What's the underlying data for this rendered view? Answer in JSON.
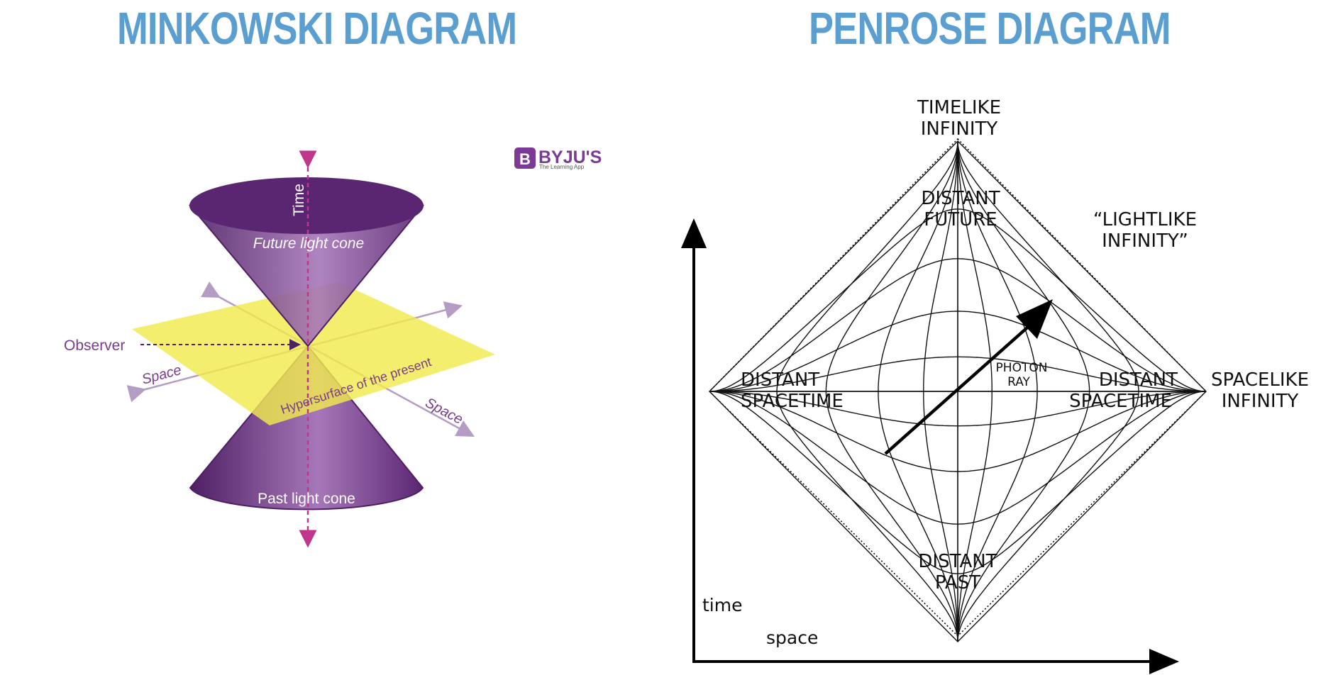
{
  "colors": {
    "title": "#5b9fd0",
    "cone_dark": "#4e1f63",
    "cone_mid": "#6e3585",
    "cone_light": "#a677b8",
    "plane": "#f0ea4e",
    "axis_time": "#c0368c",
    "axis_space": "#b49cc4",
    "observer_text": "#7a3b8f",
    "logo": "#7b3a96"
  },
  "left": {
    "title": "MINKOWSKI DIAGRAM",
    "time_label": "Time",
    "future_cone_label": "Future light cone",
    "past_cone_label": "Past light cone",
    "observer_label": "Observer",
    "space_label_left": "Space",
    "space_label_right": "Space",
    "plane_label": "Hypersurface of the present",
    "logo": {
      "letter": "B",
      "name": "BYJU'S",
      "tagline": "The Learning App"
    }
  },
  "right": {
    "title": "PENROSE DIAGRAM",
    "timelike_1": "TIMELIKE",
    "timelike_2": "INFINITY",
    "future_1": "DISTANT",
    "future_2": "FUTURE",
    "lightlike_1": "“LIGHTLIKE",
    "lightlike_2": "INFINITY”",
    "spacetime_left_1": "DISTANT",
    "spacetime_left_2": "SPACETIME",
    "spacetime_right_1": "DISTANT",
    "spacetime_right_2": "SPACETIME",
    "spacelike_1": "SPACELIKE",
    "spacelike_2": "INFINITY",
    "photon_1": "PHOTON",
    "photon_2": "RAY",
    "past_1": "DISTANT",
    "past_2": "PAST",
    "axis_time": "time",
    "axis_space": "space"
  }
}
